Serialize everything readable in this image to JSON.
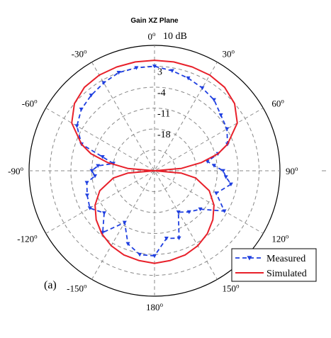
{
  "chart_data": {
    "type": "polar",
    "title": "Gain XZ Plane",
    "panel_label": "(a)",
    "radial_unit_label": "10 dB",
    "r_ticks": [
      "3",
      "-4",
      "-11",
      "-18"
    ],
    "r_range_db": [
      -32,
      10
    ],
    "angle_labels": [
      {
        "deg": 0,
        "base": "0",
        "sup": "o"
      },
      {
        "deg": 30,
        "base": "30",
        "sup": "o"
      },
      {
        "deg": 60,
        "base": "60",
        "sup": "o"
      },
      {
        "deg": 90,
        "base": "90",
        "sup": "o"
      },
      {
        "deg": 120,
        "base": "120",
        "sup": "o"
      },
      {
        "deg": 150,
        "base": "150",
        "sup": "o"
      },
      {
        "deg": 180,
        "base": "180",
        "sup": "o"
      },
      {
        "deg": -150,
        "base": "-150",
        "sup": "o"
      },
      {
        "deg": -120,
        "base": "-120",
        "sup": "o"
      },
      {
        "deg": -90,
        "base": "-90",
        "sup": "o"
      },
      {
        "deg": -60,
        "base": "-60",
        "sup": "o"
      },
      {
        "deg": -30,
        "base": "-30",
        "sup": "o"
      }
    ],
    "grid": true,
    "legend_position": "bottom-right",
    "series": [
      {
        "name": "Measured",
        "style": "dashed-with-triangle-markers",
        "color": "#1f3fe0",
        "angles_deg": [
          -180,
          -170,
          -160,
          -150,
          -140,
          -130,
          -120,
          -110,
          -100,
          -95,
          -90,
          -85,
          -80,
          -75,
          -70,
          -60,
          -50,
          -40,
          -30,
          -20,
          -10,
          0,
          10,
          20,
          30,
          40,
          50,
          60,
          70,
          75,
          80,
          85,
          90,
          95,
          100,
          110,
          120,
          130,
          140,
          150,
          160,
          170
        ],
        "gain_db": [
          -3.5,
          -3.5,
          -6,
          -12,
          -5,
          -10,
          -7,
          -8,
          -9,
          -12,
          -11,
          -13,
          -18,
          -14,
          -6,
          -2,
          0,
          1,
          2,
          3,
          3,
          3,
          2,
          1,
          0,
          -1,
          -3,
          -4,
          -6,
          -10,
          -14,
          -12,
          -9,
          -8,
          -6,
          -10,
          -5,
          -12,
          -14,
          -16,
          -8,
          -9
        ]
      },
      {
        "name": "Simulated",
        "style": "solid",
        "color": "#e8202a",
        "angles_deg": [
          -180,
          -170,
          -160,
          -150,
          -140,
          -130,
          -120,
          -110,
          -100,
          -95,
          -90,
          -85,
          -80,
          -75,
          -70,
          -60,
          -50,
          -40,
          -30,
          -20,
          -10,
          0,
          10,
          20,
          30,
          40,
          50,
          60,
          70,
          75,
          80,
          85,
          90,
          95,
          100,
          110,
          120,
          130,
          140,
          150,
          160,
          170
        ],
        "gain_db": [
          -1,
          -1.5,
          -2,
          -3,
          -4.5,
          -6.5,
          -9,
          -12.5,
          -18,
          -23,
          -32,
          -23,
          -16,
          -10,
          -6,
          0,
          3,
          4.5,
          5,
          5,
          5,
          5,
          5,
          5,
          5,
          4.5,
          3,
          0,
          -6,
          -10,
          -16,
          -23,
          -32,
          -23,
          -18,
          -12.5,
          -9,
          -6.5,
          -4.5,
          -3,
          -2,
          -1.5
        ]
      }
    ]
  }
}
